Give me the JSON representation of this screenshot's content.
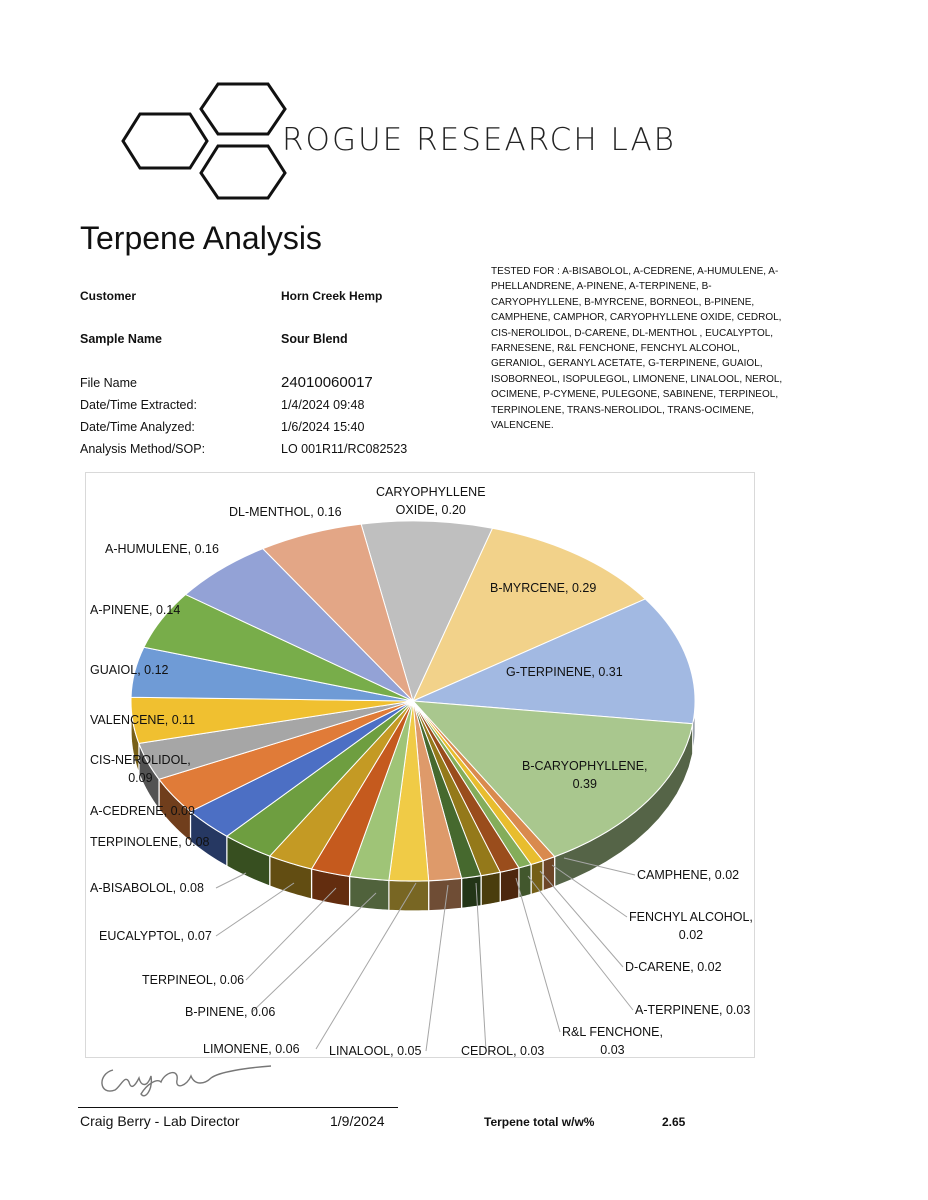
{
  "lab_name": "ROGUE RESEARCH LAB",
  "title": "Terpene Analysis",
  "info": {
    "customer_label": "Customer",
    "customer": "Horn Creek Hemp",
    "sample_label": "Sample Name",
    "sample": "Sour Blend",
    "file_label": "File Name",
    "file": "24010060017",
    "extracted_label": "Date/Time Extracted:",
    "extracted": "1/4/2024 09:48",
    "analyzed_label": "Date/Time  Analyzed:",
    "analyzed": "1/6/2024 15:40",
    "method_label": "Analysis Method/SOP:",
    "method": "LO 001R11/RC082523"
  },
  "tested_for": "TESTED FOR : A-BISABOLOL, A-CEDRENE, A-HUMULENE, A-PHELLANDRENE,  A-PINENE, A-TERPINENE, B-CARYOPHYLLENE, B-MYRCENE, BORNEOL, B-PINENE, CAMPHENE, CAMPHOR, CARYOPHYLLENE OXIDE, CEDROL, CIS-NEROLIDOL,  D-CARENE, DL-MENTHOL , EUCALYPTOL, FARNESENE, R&L FENCHONE, FENCHYL ALCOHOL, GERANIOL, GERANYL ACETATE, G-TERPINENE, GUAIOL, ISOBORNEOL, ISOPULEGOL,  LIMONENE, LINALOOL, NEROL, OCIMENE, P-CYMENE, PULEGONE, SABINENE, TERPINEOL, TERPINOLENE, TRANS-NEROLIDOL, TRANS-OCIMENE, VALENCENE.",
  "chart_data": {
    "type": "pie",
    "style": "3d",
    "legend": "none",
    "slices": [
      {
        "label": "CARYOPHYLLENE OXIDE",
        "value": 0.2,
        "color": "#bfbfbf"
      },
      {
        "label": "B-MYRCENE",
        "value": 0.29,
        "color": "#f2d28a"
      },
      {
        "label": "G-TERPINENE",
        "value": 0.31,
        "color": "#a2b9e2"
      },
      {
        "label": "B-CARYOPHYLLENE",
        "value": 0.39,
        "color": "#a9c78e"
      },
      {
        "label": "CAMPHENE",
        "value": 0.02,
        "color": "#d98a4e"
      },
      {
        "label": "FENCHYL ALCOHOL",
        "value": 0.02,
        "color": "#e8bd2e"
      },
      {
        "label": "D-CARENE",
        "value": 0.02,
        "color": "#84ad5a"
      },
      {
        "label": "A-TERPINENE",
        "value": 0.03,
        "color": "#9a4d1c"
      },
      {
        "label": "R&L FENCHONE",
        "value": 0.03,
        "color": "#94791a"
      },
      {
        "label": "CEDROL",
        "value": 0.03,
        "color": "#46692e"
      },
      {
        "label": "LINALOOL",
        "value": 0.05,
        "color": "#de9a6a"
      },
      {
        "label": "LIMONENE",
        "value": 0.06,
        "color": "#f0cb46"
      },
      {
        "label": "B-PINENE",
        "value": 0.06,
        "color": "#9fc477"
      },
      {
        "label": "TERPINEOL",
        "value": 0.06,
        "color": "#c55a1e"
      },
      {
        "label": "EUCALYPTOL",
        "value": 0.07,
        "color": "#c49a24"
      },
      {
        "label": "A-BISABOLOL",
        "value": 0.08,
        "color": "#6e9e40"
      },
      {
        "label": "TERPINOLENE",
        "value": 0.08,
        "color": "#4c6fc4"
      },
      {
        "label": "A-CEDRENE",
        "value": 0.09,
        "color": "#e07b38"
      },
      {
        "label": "CIS-NEROLIDOL",
        "value": 0.09,
        "color": "#a6a6a6"
      },
      {
        "label": "VALENCENE",
        "value": 0.11,
        "color": "#f0c030"
      },
      {
        "label": "GUAIOL",
        "value": 0.12,
        "color": "#6f9bd6"
      },
      {
        "label": "A-PINENE",
        "value": 0.14,
        "color": "#78ad4a"
      },
      {
        "label": "A-HUMULENE",
        "value": 0.16,
        "color": "#93a2d6"
      },
      {
        "label": "DL-MENTHOL",
        "value": 0.16,
        "color": "#e3a686"
      }
    ],
    "data_labels": [
      [
        "CARYOPHYLLENE",
        "OXIDE, 0.20"
      ],
      [
        "B-MYRCENE, 0.29"
      ],
      [
        "G-TERPINENE, 0.31"
      ],
      [
        "B-CARYOPHYLLENE,",
        "0.39"
      ],
      [
        "CAMPHENE, 0.02"
      ],
      [
        "FENCHYL ALCOHOL,",
        "0.02"
      ],
      [
        "D-CARENE, 0.02"
      ],
      [
        "A-TERPINENE, 0.03"
      ],
      [
        "R&L FENCHONE,",
        "0.03"
      ],
      [
        "CEDROL, 0.03"
      ],
      [
        "LINALOOL, 0.05"
      ],
      [
        "LIMONENE, 0.06"
      ],
      [
        "B-PINENE, 0.06"
      ],
      [
        "TERPINEOL, 0.06"
      ],
      [
        "EUCALYPTOL, 0.07"
      ],
      [
        "A-BISABOLOL, 0.08"
      ],
      [
        "TERPINOLENE, 0.08"
      ],
      [
        "A-CEDRENE, 0.09"
      ],
      [
        "CIS-NEROLIDOL,",
        "0.09"
      ],
      [
        "VALENCENE, 0.11"
      ],
      [
        "GUAIOL, 0.12"
      ],
      [
        "A-PINENE, 0.14"
      ],
      [
        "A-HUMULENE, 0.16"
      ],
      [
        "DL-MENTHOL, 0.16"
      ]
    ]
  },
  "footer": {
    "signer": "Craig Berry - Lab Director",
    "date": "1/9/2024",
    "total_label": "Terpene total w/w%",
    "total": "2.65"
  }
}
